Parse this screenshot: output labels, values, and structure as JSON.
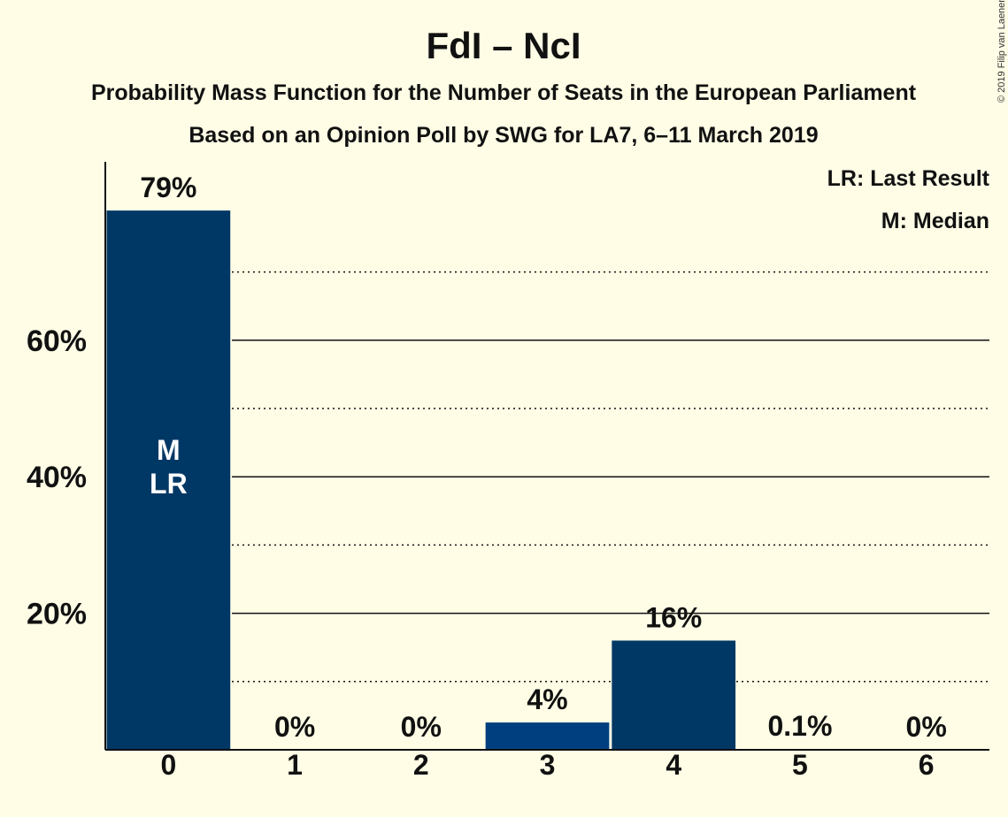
{
  "title": "FdI – NcI",
  "subtitle_1": "Probability Mass Function for the Number of Seats in the European Parliament",
  "subtitle_2": "Based on an Opinion Poll by SWG for LA7, 6–11 March 2019",
  "copyright": "© 2019 Filip van Laenen",
  "legend": {
    "last_result": "LR: Last Result",
    "median": "M: Median"
  },
  "chart_data": {
    "type": "bar",
    "categories": [
      "0",
      "1",
      "2",
      "3",
      "4",
      "5",
      "6"
    ],
    "values": [
      79,
      0,
      0,
      4,
      16,
      0.1,
      0
    ],
    "value_labels": [
      "79%",
      "0%",
      "0%",
      "4%",
      "16%",
      "0.1%",
      "0%"
    ],
    "bar_markers": [
      "M",
      "LR"
    ],
    "bar_markers_category": "0",
    "ylim": [
      0,
      80
    ],
    "yticks": [
      20,
      40,
      60
    ],
    "ytick_labels": [
      "20%",
      "40%",
      "60%"
    ],
    "minor_gridlines": [
      10,
      30,
      50,
      70
    ],
    "grid": true,
    "legend_position": "top-right",
    "colors": {
      "bar": "#003865",
      "bar_highlight": "#003f7f",
      "background": "#fffde6"
    }
  }
}
